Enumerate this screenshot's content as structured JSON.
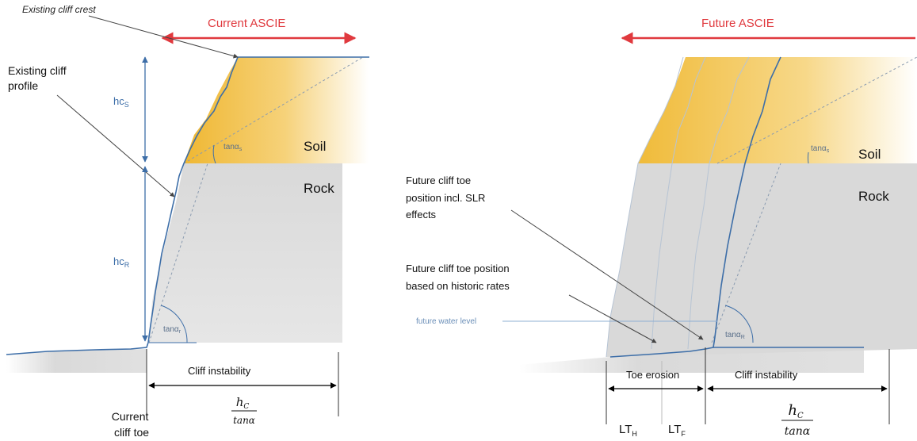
{
  "colors": {
    "soil": "#f1c24a",
    "rock": "#d9d9d9",
    "profile_blue": "#3d6ea8",
    "ascie_red": "#e0393e",
    "arrow_black": "#000000"
  },
  "left_panel": {
    "ascie_label": "Current ASCIE",
    "cliff_crest_label": "Existing cliff crest",
    "profile_label_line1": "Existing cliff",
    "profile_label_line2": "profile",
    "hc_s": {
      "base": "hc",
      "sub": "S"
    },
    "hc_r": {
      "base": "hc",
      "sub": "R"
    },
    "tan_s": {
      "base": "tanα",
      "sub": "s"
    },
    "tan_r": {
      "base": "tanα",
      "sub": "r"
    },
    "soil_label": "Soil",
    "rock_label": "Rock",
    "instability_label": "Cliff instability",
    "fraction": {
      "num": "h",
      "num_sub": "C",
      "den": "tanα"
    },
    "toe_label_line1": "Current",
    "toe_label_line2": "cliff toe"
  },
  "right_panel": {
    "ascie_label": "Future ASCIE",
    "tan_s": {
      "base": "tanα",
      "sub": "s"
    },
    "tan_r": {
      "base": "tanα",
      "sub": "R"
    },
    "soil_label": "Soil",
    "rock_label": "Rock",
    "slr_label_line1": "Future cliff toe",
    "slr_label_line2": "position incl. SLR",
    "slr_label_line3": "effects",
    "hist_label_line1": "Future cliff toe position",
    "hist_label_line2": "based on historic rates",
    "water_label": "future water level",
    "toe_erosion_label": "Toe erosion",
    "instability_label": "Cliff instability",
    "lt_h": {
      "base": "LT",
      "sub": "H"
    },
    "lt_f": {
      "base": "LT",
      "sub": "F"
    },
    "fraction": {
      "num": "h",
      "num_sub": "C",
      "den": "tanα"
    }
  }
}
